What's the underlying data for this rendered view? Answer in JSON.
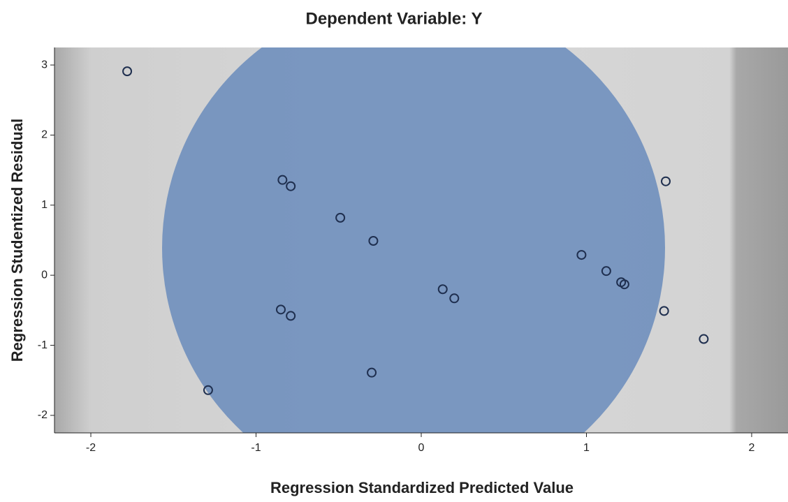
{
  "chart_data": {
    "type": "scatter",
    "title": "Dependent Variable: Y",
    "x_label": "Regression Standardized Predicted Value",
    "y_label": "Regression Studentized Residual",
    "color": "#1f2f4f",
    "x": [
      -1.78,
      -0.84,
      -0.79,
      -0.49,
      -0.29,
      -1.29,
      -0.85,
      -0.79,
      -0.3,
      0.13,
      0.2,
      0.97,
      1.12,
      1.21,
      1.23,
      1.48,
      1.47,
      1.71
    ],
    "y": [
      2.91,
      1.36,
      1.27,
      0.82,
      0.49,
      -1.64,
      -0.49,
      -0.58,
      -1.39,
      -0.2,
      -0.33,
      0.29,
      0.06,
      -0.1,
      -0.13,
      1.34,
      -0.51,
      -0.91
    ],
    "xlim": [
      -2.22,
      2.22
    ],
    "ylim": [
      -2.25,
      3.25
    ],
    "xticks": [
      -2,
      -1,
      0,
      1,
      2
    ],
    "yticks": [
      -2,
      -1,
      0,
      1,
      2,
      3
    ]
  }
}
